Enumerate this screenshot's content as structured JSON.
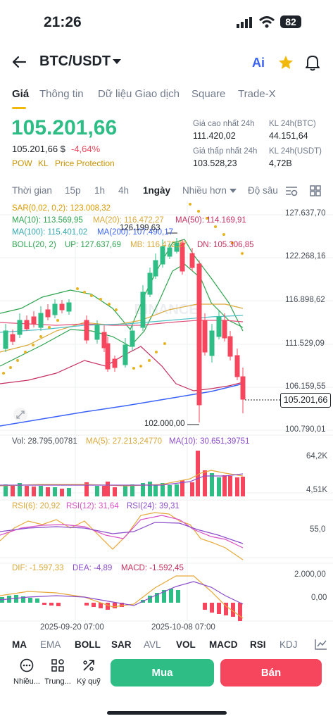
{
  "status": {
    "time": "21:26",
    "battery": "82"
  },
  "header": {
    "pair": "BTC/USDT",
    "ai_label": "Ai"
  },
  "tabs": [
    "Giá",
    "Thông tin",
    "Dữ liệu Giao dịch",
    "Square",
    "Trade-X"
  ],
  "price": {
    "last": "105.201,66",
    "last_usd": "105.201,66 $",
    "change": "-4,64%",
    "tags": [
      "POW",
      "KL",
      "Price Protection"
    ],
    "high_label": "Giá cao nhất 24h",
    "high": "111.420,02",
    "vol_btc_label": "KL 24h(BTC)",
    "vol_btc": "44.151,64",
    "low_label": "Giá thấp nhất 24h",
    "low": "103.528,23",
    "vol_usdt_label": "KL 24h(USDT)",
    "vol_usdt": "4,72B"
  },
  "timebar": [
    "Thời gian",
    "15p",
    "1h",
    "4h",
    "1ngày",
    "Nhiều hơn",
    "Độ sâu"
  ],
  "indicators": {
    "sar": "SAR(0,02, 0,2): 123.008,32",
    "ma10": "MA(10): 113.569,95",
    "ma20": "MA(20): 116.472,27",
    "ma50": "MA(50): 114.169,91",
    "ma100": "MA(100): 115.401,02",
    "ma200": "MA(200): 107.490,17",
    "boll": "BOLL(20, 2)",
    "up": "UP: 127.637,69",
    "mb": "MB: 116.472,27",
    "dn": "DN: 105.306,85"
  },
  "chart_labels": {
    "axis": [
      "127.637,70",
      "122.268,16",
      "116.898,62",
      "111.529,09",
      "106.159,55",
      "100.790,01"
    ],
    "last_tag": "105.201,66",
    "high_mark": "126.199,63",
    "low_mark": "102.000,00",
    "watermark": "BINANCE"
  },
  "volume": {
    "vol": "Vol: 28.795,00781",
    "ma5": "MA(5): 27.213,24770",
    "ma10": "MA(10): 30.651,39751",
    "axis": [
      "64,2K",
      "4,51K"
    ]
  },
  "rsi": {
    "rsi6": "RSI(6): 20,92",
    "rsi12": "RSI(12): 31,64",
    "rsi24": "RSI(24): 39,31",
    "axis": [
      "55,0"
    ]
  },
  "macd": {
    "dif": "DIF: -1.597,33",
    "dea": "DEA: -4,89",
    "macd": "MACD: -1.592,45",
    "axis": [
      "2.000,00",
      "0,00"
    ]
  },
  "dates": [
    "2025-09-20 07:00",
    "2025-10-08 07:00"
  ],
  "indicator_tabs": [
    "MA",
    "EMA",
    "BOLL",
    "SAR",
    "AVL",
    "VOL",
    "MACD",
    "RSI",
    "KDJ"
  ],
  "bottom": {
    "items": [
      "Nhiều...",
      "Trung...",
      "Ký quỹ"
    ],
    "buy": "Mua",
    "sell": "Bán"
  },
  "colors": {
    "up": "#2ebd85",
    "down": "#f6465d",
    "brand": "#f0b90b"
  }
}
